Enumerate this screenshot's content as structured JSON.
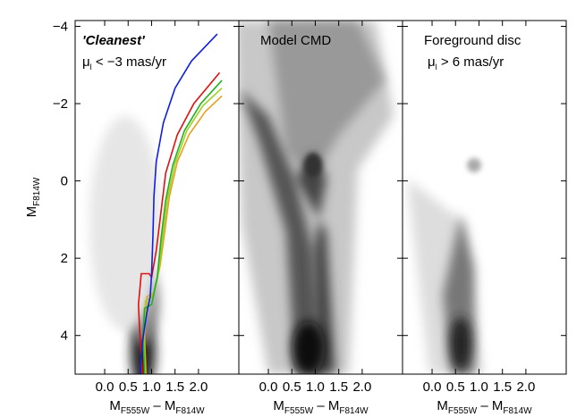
{
  "chart_data": [
    {
      "type": "line",
      "annotation": "'Cleanest'",
      "annotation2": [
        "μ",
        "l",
        " < −3 mas/yr"
      ],
      "ylabel": [
        "M",
        "F814W"
      ],
      "xlabel": [
        "M",
        "F555W",
        " – M",
        "F814W"
      ],
      "xlim": [
        -0.63,
        2.86
      ],
      "ylim": [
        5,
        -4.15
      ],
      "xticks": [
        {
          "value": 0,
          "label": "0.0"
        },
        {
          "value": 0.5,
          "label": "0.5"
        },
        {
          "value": 1,
          "label": "1.0"
        },
        {
          "value": 1.5,
          "label": "1.5"
        },
        {
          "value": 2,
          "label": "2.0"
        }
      ],
      "yticks": [
        {
          "value": -4,
          "label": "−4"
        },
        {
          "value": -2,
          "label": "−2"
        },
        0,
        2,
        4
      ],
      "series": [
        {
          "color": "#e8a020",
          "x": [
            0.88,
            0.85,
            0.9,
            1.05,
            1.18,
            1.28,
            1.38,
            1.55,
            1.8,
            2.15,
            2.5
          ],
          "values": [
            5,
            4,
            3.0,
            2.9,
            2.2,
            1.3,
            0.4,
            -0.5,
            -1.2,
            -1.8,
            -2.2
          ]
        },
        {
          "color": "#a0d020",
          "x": [
            0.86,
            0.83,
            0.87,
            1.02,
            1.15,
            1.24,
            1.34,
            1.5,
            1.75,
            2.1,
            2.5
          ],
          "values": [
            5,
            4,
            3.1,
            3.0,
            2.35,
            1.4,
            0.45,
            -0.45,
            -1.3,
            -1.95,
            -2.4
          ]
        },
        {
          "color": "#20b020",
          "x": [
            0.85,
            0.82,
            0.85,
            1.0,
            1.12,
            1.2,
            1.3,
            1.45,
            1.7,
            2.05,
            2.5
          ],
          "values": [
            5,
            4,
            3.3,
            3.2,
            2.5,
            1.5,
            0.5,
            -0.4,
            -1.3,
            -2.0,
            -2.6
          ]
        },
        {
          "color": "#e01010",
          "x": [
            0.8,
            0.75,
            0.72,
            0.78,
            0.95,
            1.0,
            1.1,
            1.2,
            1.3,
            1.55,
            1.9,
            2.45
          ],
          "values": [
            5,
            4,
            3.2,
            2.4,
            2.4,
            2.5,
            1.8,
            0.8,
            -0.2,
            -1.2,
            -2.0,
            -2.8
          ]
        },
        {
          "color": "#1020e0",
          "x": [
            0.75,
            0.8,
            0.9,
            0.97,
            1.0,
            1.03,
            1.05,
            1.1,
            1.25,
            1.5,
            1.85,
            2.4
          ],
          "values": [
            5,
            4.2,
            3.4,
            3.0,
            2.4,
            1.4,
            0.4,
            -0.5,
            -1.5,
            -2.4,
            -3.1,
            -3.8
          ]
        }
      ]
    },
    {
      "type": "density",
      "annotation": "Model CMD",
      "xlabel": [
        "M",
        "F555W",
        " – M",
        "F814W"
      ],
      "xlim": [
        -0.63,
        2.86
      ],
      "ylim": [
        5,
        -4.15
      ],
      "xticks": [
        {
          "value": 0,
          "label": "0.0"
        },
        {
          "value": 0.5,
          "label": "0.5"
        },
        {
          "value": 1,
          "label": "1.0"
        },
        {
          "value": 1.5,
          "label": "1.5"
        },
        {
          "value": 2,
          "label": "2.0"
        }
      ]
    },
    {
      "type": "density",
      "annotation": "Foreground disc",
      "annotation2": [
        "μ",
        "l",
        " > 6 mas/yr"
      ],
      "xlabel": [
        "M",
        "F555W",
        " – M",
        "F814W"
      ],
      "xlim": [
        -0.63,
        2.86
      ],
      "ylim": [
        5,
        -4.15
      ],
      "xticks": [
        {
          "value": 0,
          "label": "0.0"
        },
        {
          "value": 0.5,
          "label": "0.5"
        },
        {
          "value": 1,
          "label": "1.0"
        },
        {
          "value": 1.5,
          "label": "1.5"
        },
        {
          "value": 2,
          "label": "2.0"
        }
      ]
    }
  ]
}
